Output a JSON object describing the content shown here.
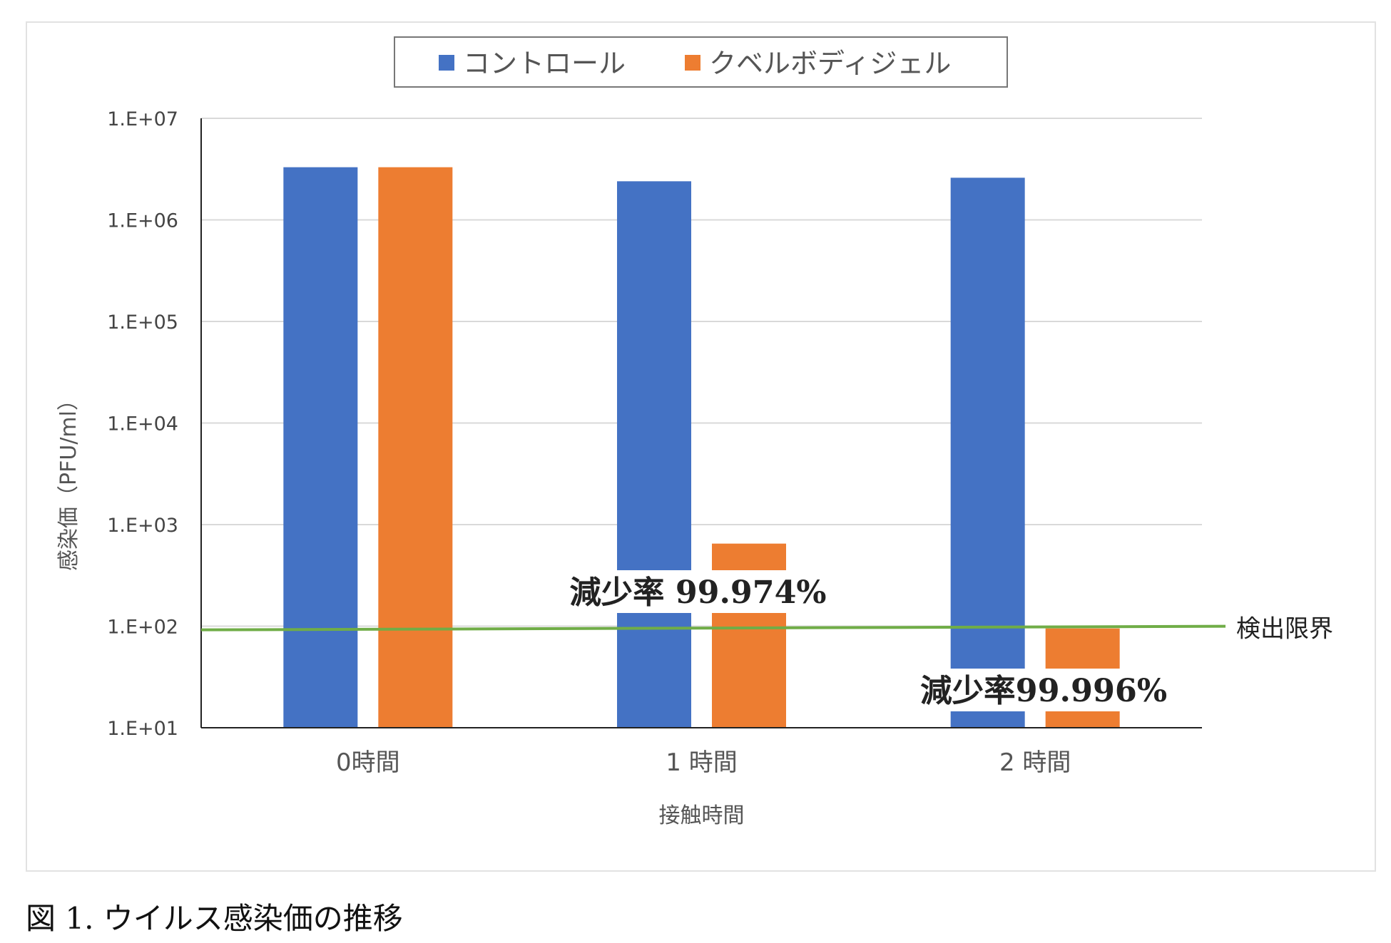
{
  "chart_data": {
    "type": "bar",
    "title": "",
    "xlabel": "接触時間",
    "ylabel": "感染価（PFU/ml）",
    "yscale": "log",
    "ylim": [
      10,
      10000000
    ],
    "yticks": [
      10,
      100,
      1000,
      10000,
      100000,
      1000000,
      10000000
    ],
    "ytick_labels": [
      "1.E+01",
      "1.E+02",
      "1.E+03",
      "1.E+04",
      "1.E+05",
      "1.E+06",
      "1.E+07"
    ],
    "categories": [
      "0時間",
      "1 時間",
      "2 時間"
    ],
    "series": [
      {
        "name": "コントロール",
        "color": "#4472c4",
        "values": [
          3300000,
          2400000,
          2600000
        ]
      },
      {
        "name": "クベルボディジェル",
        "color": "#ed7d31",
        "values": [
          3300000,
          650,
          95
        ]
      }
    ],
    "reference_line": {
      "label": "検出限界",
      "value": 95,
      "color": "#70ad47"
    },
    "annotations": [
      {
        "text": "減少率 99.974%",
        "category": "1 時間"
      },
      {
        "text": "減少率99.996%",
        "category": "2 時間"
      }
    ],
    "legend": "top-center",
    "grid": true
  },
  "caption": "図 1. ウイルス感染価の推移"
}
